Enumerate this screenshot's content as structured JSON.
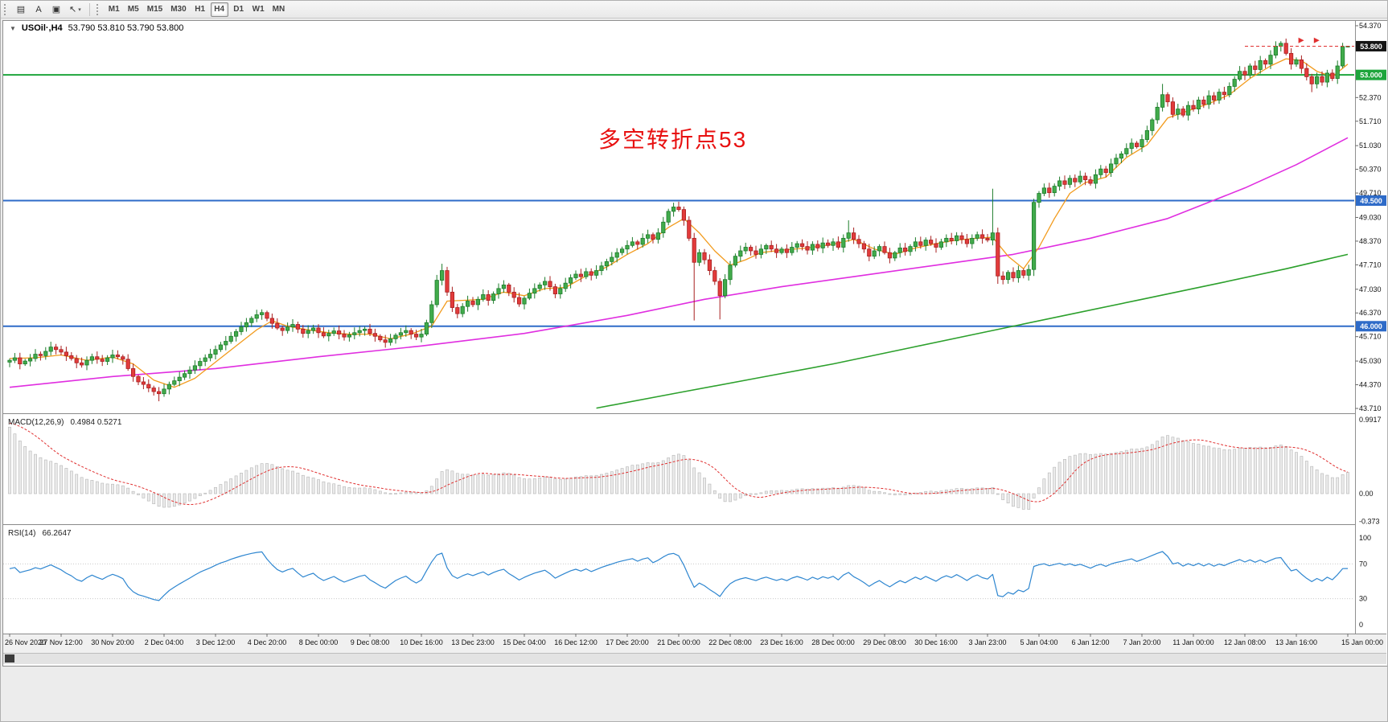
{
  "toolbar": {
    "tools": [
      {
        "name": "chart-grid",
        "glyph": "▤"
      },
      {
        "name": "text-label",
        "glyph": "A"
      },
      {
        "name": "text-frame",
        "glyph": "▣"
      },
      {
        "name": "cursor",
        "glyph": "↖",
        "dropdown": "▾"
      }
    ],
    "timeframes": [
      "M1",
      "M5",
      "M15",
      "M30",
      "H1",
      "H4",
      "D1",
      "W1",
      "MN"
    ],
    "active_timeframe": "H4"
  },
  "chart": {
    "collapse_glyph": "▼",
    "title": "USOil·,H4",
    "ohlc_text": "53.790 53.810 53.790 53.800",
    "annotation": {
      "text": "多空转折点53",
      "color": "#e81010"
    },
    "hlines": [
      {
        "price": 53.0,
        "color": "#1ea53c",
        "width": 2
      },
      {
        "price": 49.5,
        "color": "#2e6bc8",
        "width": 2
      },
      {
        "price": 46.0,
        "color": "#2e6bc8",
        "width": 2
      }
    ],
    "price_axis": {
      "ticks": [
        "54.370",
        "52.370",
        "51.710",
        "51.030",
        "50.370",
        "49.710",
        "49.030",
        "48.370",
        "47.710",
        "47.030",
        "46.370",
        "45.710",
        "45.030",
        "44.370",
        "43.710"
      ],
      "badges": [
        {
          "label": "53.800",
          "price": 53.8,
          "bg": "#141414"
        },
        {
          "label": "53.000",
          "price": 53.0,
          "bg": "#1ea53c"
        },
        {
          "label": "49.500",
          "price": 49.5,
          "bg": "#2e6bc8"
        },
        {
          "label": "46.000",
          "price": 46.0,
          "bg": "#2e6bc8"
        }
      ]
    }
  },
  "chart_data": {
    "type": "candlestick",
    "symbol": "USOil",
    "period": "H4",
    "price_range": [
      43.71,
      54.37
    ],
    "bars_per_label": 10,
    "time_labels": [
      "26 Nov 2020",
      "27 Nov 12:00",
      "30 Nov 20:00",
      "2 Dec 04:00",
      "3 Dec 12:00",
      "4 Dec 20:00",
      "8 Dec 00:00",
      "9 Dec 08:00",
      "10 Dec 16:00",
      "13 Dec 23:00",
      "15 Dec 04:00",
      "16 Dec 12:00",
      "17 Dec 20:00",
      "21 Dec 00:00",
      "22 Dec 08:00",
      "23 Dec 16:00",
      "28 Dec 00:00",
      "29 Dec 08:00",
      "30 Dec 16:00",
      "3 Jan 23:00",
      "5 Jan 04:00",
      "6 Jan 12:00",
      "7 Jan 20:00",
      "11 Jan 00:00",
      "12 Jan 08:00",
      "13 Jan 16:00",
      "15 Jan 00:00"
    ],
    "first_open": 45.0,
    "closes": [
      45.05,
      45.12,
      44.95,
      45.03,
      45.1,
      45.22,
      45.18,
      45.3,
      45.42,
      45.35,
      45.28,
      45.18,
      45.1,
      44.98,
      44.92,
      45.05,
      45.15,
      45.08,
      45.02,
      45.12,
      45.2,
      45.15,
      45.08,
      44.82,
      44.6,
      44.45,
      44.38,
      44.28,
      44.18,
      44.12,
      44.25,
      44.38,
      44.48,
      44.58,
      44.68,
      44.78,
      44.9,
      45.02,
      45.12,
      45.22,
      45.35,
      45.48,
      45.58,
      45.72,
      45.85,
      45.98,
      46.1,
      46.22,
      46.32,
      46.38,
      46.22,
      46.08,
      45.95,
      45.88,
      45.98,
      46.05,
      45.92,
      45.8,
      45.88,
      45.95,
      45.82,
      45.73,
      45.8,
      45.87,
      45.78,
      45.7,
      45.76,
      45.82,
      45.88,
      45.92,
      45.8,
      45.72,
      45.62,
      45.55,
      45.65,
      45.75,
      45.82,
      45.88,
      45.78,
      45.7,
      45.78,
      46.1,
      46.6,
      47.28,
      47.55,
      46.95,
      46.52,
      46.35,
      46.55,
      46.7,
      46.6,
      46.75,
      46.88,
      46.72,
      46.9,
      47.05,
      47.15,
      46.95,
      46.8,
      46.62,
      46.78,
      46.92,
      47.05,
      47.15,
      47.25,
      47.1,
      46.9,
      47.05,
      47.2,
      47.35,
      47.45,
      47.38,
      47.52,
      47.42,
      47.55,
      47.68,
      47.8,
      47.92,
      48.05,
      48.15,
      48.25,
      48.35,
      48.28,
      48.45,
      48.55,
      48.42,
      48.6,
      48.9,
      49.2,
      49.32,
      49.25,
      48.95,
      48.45,
      47.78,
      48.05,
      47.85,
      47.55,
      47.25,
      46.85,
      47.3,
      47.7,
      47.95,
      48.1,
      48.2,
      48.1,
      48.0,
      48.15,
      48.25,
      48.15,
      48.05,
      48.15,
      48.05,
      48.2,
      48.3,
      48.22,
      48.12,
      48.28,
      48.18,
      48.32,
      48.25,
      48.35,
      48.2,
      48.45,
      48.6,
      48.42,
      48.3,
      48.15,
      47.95,
      48.1,
      48.22,
      48.05,
      47.9,
      48.05,
      48.18,
      48.08,
      48.22,
      48.35,
      48.25,
      48.4,
      48.3,
      48.2,
      48.35,
      48.45,
      48.38,
      48.52,
      48.42,
      48.3,
      48.45,
      48.55,
      48.45,
      48.4,
      48.6,
      47.4,
      47.3,
      47.5,
      47.35,
      47.55,
      47.42,
      47.58,
      49.45,
      49.7,
      49.85,
      49.72,
      49.9,
      50.05,
      49.95,
      50.12,
      50.02,
      50.18,
      50.08,
      49.98,
      50.22,
      50.38,
      50.28,
      50.52,
      50.68,
      50.8,
      50.95,
      51.1,
      51.0,
      51.2,
      51.45,
      51.75,
      52.1,
      52.45,
      52.25,
      51.9,
      52.05,
      51.88,
      52.15,
      52.05,
      52.3,
      52.18,
      52.42,
      52.3,
      52.52,
      52.45,
      52.68,
      52.88,
      53.1,
      53.0,
      53.25,
      53.15,
      53.4,
      53.3,
      53.55,
      53.8,
      53.88,
      53.6,
      53.3,
      53.42,
      53.18,
      52.95,
      52.75,
      52.95,
      52.8,
      53.05,
      52.9,
      53.25,
      53.79,
      53.8
    ],
    "wick_overrides": {
      "29": {
        "low": 43.91
      },
      "49": {
        "high": 46.47
      },
      "84": {
        "high": 47.74
      },
      "133": {
        "low": 46.16
      },
      "138": {
        "low": 46.19
      },
      "163": {
        "high": 48.95
      },
      "191": {
        "high": 49.83
      },
      "192": {
        "low": 47.18
      },
      "199": {
        "high": 49.55,
        "low": 47.4
      },
      "224": {
        "high": 52.75
      },
      "247": {
        "high": 53.94
      },
      "253": {
        "low": 52.52
      },
      "260": {
        "high": 53.81,
        "low": 53.77
      }
    },
    "candle_colors": {
      "bull_fill": "#41ab4b",
      "bull_border": "#1d7c2b",
      "bear_fill": "#e23b3b",
      "bear_border": "#a82020"
    },
    "ma_fast": {
      "name": "MA fast",
      "color": "#f29b1d",
      "points": [
        [
          0,
          45.1
        ],
        [
          5,
          45.12
        ],
        [
          10,
          45.2
        ],
        [
          15,
          45.05
        ],
        [
          20,
          45.14
        ],
        [
          24,
          44.95
        ],
        [
          28,
          44.5
        ],
        [
          32,
          44.3
        ],
        [
          36,
          44.55
        ],
        [
          40,
          45.0
        ],
        [
          44,
          45.45
        ],
        [
          48,
          45.9
        ],
        [
          51,
          46.15
        ],
        [
          54,
          46.0
        ],
        [
          58,
          45.9
        ],
        [
          62,
          45.82
        ],
        [
          66,
          45.78
        ],
        [
          70,
          45.78
        ],
        [
          74,
          45.65
        ],
        [
          78,
          45.78
        ],
        [
          82,
          46.0
        ],
        [
          85,
          46.7
        ],
        [
          88,
          46.72
        ],
        [
          92,
          46.75
        ],
        [
          96,
          46.95
        ],
        [
          100,
          46.85
        ],
        [
          104,
          47.05
        ],
        [
          108,
          47.08
        ],
        [
          112,
          47.4
        ],
        [
          116,
          47.65
        ],
        [
          120,
          48.0
        ],
        [
          124,
          48.3
        ],
        [
          128,
          48.75
        ],
        [
          131,
          49.0
        ],
        [
          134,
          48.6
        ],
        [
          137,
          48.1
        ],
        [
          140,
          47.7
        ],
        [
          143,
          47.85
        ],
        [
          146,
          48.05
        ],
        [
          150,
          48.12
        ],
        [
          155,
          48.18
        ],
        [
          160,
          48.28
        ],
        [
          164,
          48.42
        ],
        [
          168,
          48.15
        ],
        [
          172,
          48.0
        ],
        [
          176,
          48.18
        ],
        [
          180,
          48.3
        ],
        [
          184,
          48.4
        ],
        [
          188,
          48.45
        ],
        [
          191,
          48.48
        ],
        [
          194,
          47.95
        ],
        [
          197,
          47.6
        ],
        [
          200,
          48.2
        ],
        [
          203,
          49.0
        ],
        [
          206,
          49.7
        ],
        [
          209,
          50.0
        ],
        [
          213,
          50.15
        ],
        [
          217,
          50.7
        ],
        [
          221,
          51.05
        ],
        [
          225,
          51.8
        ],
        [
          229,
          52.0
        ],
        [
          233,
          52.2
        ],
        [
          237,
          52.45
        ],
        [
          241,
          52.9
        ],
        [
          245,
          53.25
        ],
        [
          248,
          53.45
        ],
        [
          251,
          53.4
        ],
        [
          254,
          53.1
        ],
        [
          257,
          52.95
        ],
        [
          260,
          53.3
        ]
      ]
    },
    "ma_mid": {
      "name": "MA mid",
      "color": "#e02ee0",
      "points": [
        [
          0,
          44.3
        ],
        [
          20,
          44.6
        ],
        [
          40,
          44.82
        ],
        [
          60,
          45.15
        ],
        [
          80,
          45.45
        ],
        [
          100,
          45.8
        ],
        [
          120,
          46.3
        ],
        [
          135,
          46.75
        ],
        [
          150,
          47.1
        ],
        [
          165,
          47.4
        ],
        [
          180,
          47.7
        ],
        [
          195,
          48.0
        ],
        [
          210,
          48.45
        ],
        [
          225,
          49.0
        ],
        [
          240,
          49.85
        ],
        [
          250,
          50.5
        ],
        [
          260,
          51.25
        ]
      ]
    },
    "ma_slow": {
      "name": "MA slow",
      "color": "#2ca02c",
      "points": [
        [
          114,
          43.72
        ],
        [
          130,
          44.15
        ],
        [
          145,
          44.55
        ],
        [
          160,
          44.95
        ],
        [
          175,
          45.4
        ],
        [
          190,
          45.85
        ],
        [
          205,
          46.3
        ],
        [
          220,
          46.75
        ],
        [
          235,
          47.2
        ],
        [
          248,
          47.6
        ],
        [
          260,
          48.0
        ]
      ]
    },
    "macd": {
      "label": "MACD(12,26,9)",
      "values_text": "0.4984 0.5271",
      "axis_labels": [
        "0.9917",
        "0.00",
        "-0.373"
      ],
      "axis_values": [
        0.9917,
        0,
        -0.373
      ],
      "fast": 12,
      "slow": 26,
      "signal": 9,
      "seed": {
        "ema12": 45.5,
        "ema26": 44.5,
        "signal": 0.95
      },
      "histogram_fill": "#ebebeb",
      "histogram_border": "#b5b5b5",
      "signal_color": "#e03030"
    },
    "rsi": {
      "label": "RSI(14)",
      "value_text": "66.2647",
      "period": 14,
      "axis_labels": [
        "100",
        "70",
        "30",
        "0"
      ],
      "axis_values": [
        100,
        70,
        30,
        0
      ],
      "levels": [
        70,
        30
      ],
      "color": "#2e86d0",
      "seed": {
        "avg_gain": 0.1,
        "avg_loss": 0.055
      }
    },
    "markers": {
      "color": "#e03030",
      "dash_price": 53.8,
      "arrow_price": 53.96,
      "arrow_indices": [
        251.5,
        254.5
      ]
    }
  }
}
